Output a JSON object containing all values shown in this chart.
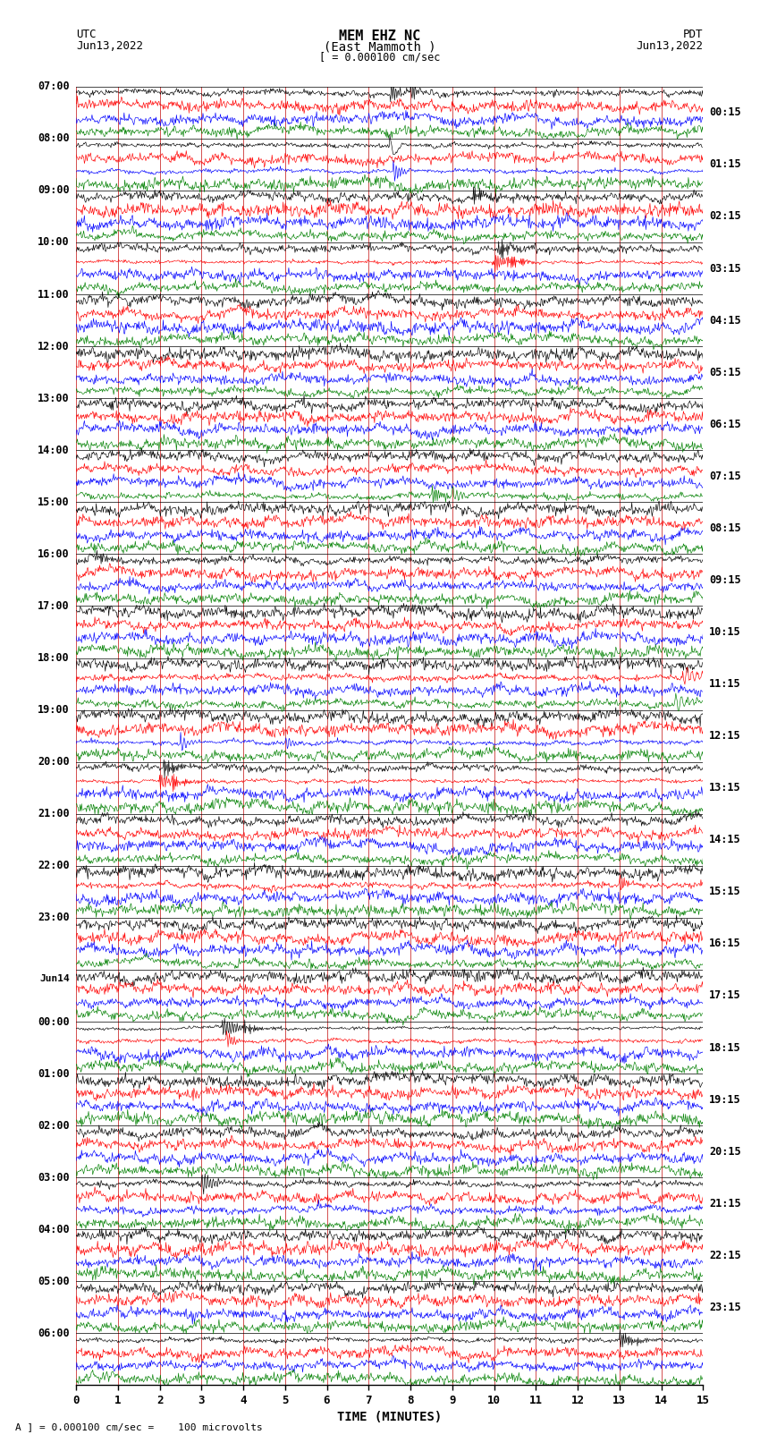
{
  "title_line1": "MEM EHZ NC",
  "title_line2": "(East Mammoth )",
  "scale_label": "[ = 0.000100 cm/sec",
  "left_header1": "UTC",
  "left_header2": "Jun13,2022",
  "right_header1": "PDT",
  "right_header2": "Jun13,2022",
  "bottom_note": "A ] = 0.000100 cm/sec =    100 microvolts",
  "xlabel": "TIME (MINUTES)",
  "x_ticks": [
    0,
    1,
    2,
    3,
    4,
    5,
    6,
    7,
    8,
    9,
    10,
    11,
    12,
    13,
    14,
    15
  ],
  "trace_colors": [
    "black",
    "red",
    "blue",
    "green"
  ],
  "left_times": [
    "07:00",
    "08:00",
    "09:00",
    "10:00",
    "11:00",
    "12:00",
    "13:00",
    "14:00",
    "15:00",
    "16:00",
    "17:00",
    "18:00",
    "19:00",
    "20:00",
    "21:00",
    "22:00",
    "23:00",
    "Jun14",
    "00:00",
    "01:00",
    "02:00",
    "03:00",
    "04:00",
    "05:00",
    "06:00"
  ],
  "right_times": [
    "00:15",
    "01:15",
    "02:15",
    "03:15",
    "04:15",
    "05:15",
    "06:15",
    "07:15",
    "08:15",
    "09:15",
    "10:15",
    "11:15",
    "12:15",
    "13:15",
    "14:15",
    "15:15",
    "16:15",
    "17:15",
    "18:15",
    "19:15",
    "20:15",
    "21:15",
    "22:15",
    "23:15"
  ],
  "n_rows": 25,
  "traces_per_row": 4,
  "bg_color": "white",
  "grid_color": "#888888",
  "grid_color_red": "#cc3333",
  "seed": 42
}
